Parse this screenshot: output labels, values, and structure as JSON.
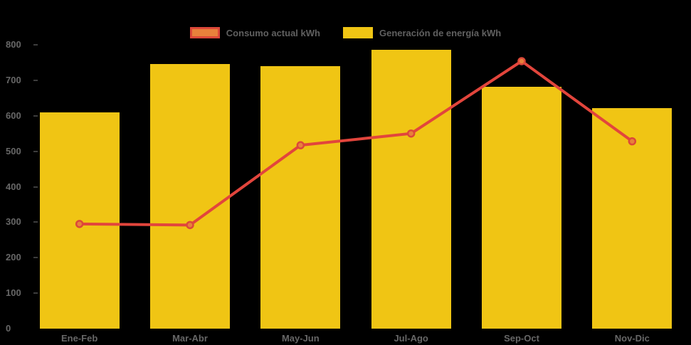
{
  "chart_data": {
    "type": "bar",
    "subtype": "bar-with-line-overlay",
    "title": "",
    "categories": [
      "Ene-Feb",
      "Mar-Abr",
      "May-Jun",
      "Jul-Ago",
      "Sep-Oct",
      "Nov-Dic"
    ],
    "series": [
      {
        "name": "Generación de energía kWh",
        "kind": "bar",
        "values": [
          610,
          745,
          740,
          785,
          682,
          622
        ],
        "color": "#f0c514"
      },
      {
        "name": "Consumo actual kWh",
        "kind": "line",
        "values": [
          295,
          292,
          517,
          550,
          754,
          528
        ],
        "color": "#e2453c",
        "marker_fill": "#e8813b",
        "marker_stroke": "#dc4839"
      }
    ],
    "xlabel": "",
    "ylabel": "",
    "ylim": [
      0,
      800
    ],
    "y_ticks": [
      0,
      100,
      200,
      300,
      400,
      500,
      600,
      700,
      800
    ],
    "grid": false,
    "legend_position": "top-center",
    "background_color": "#000000",
    "axis_text_color": "#676767"
  },
  "legend": {
    "items": [
      {
        "label": "Consumo actual kWh",
        "swatch_fill": "#e8813b",
        "swatch_border": "#dc4839"
      },
      {
        "label": "Generación de energía kWh",
        "swatch_fill": "#f0c514",
        "swatch_border": ""
      }
    ]
  }
}
